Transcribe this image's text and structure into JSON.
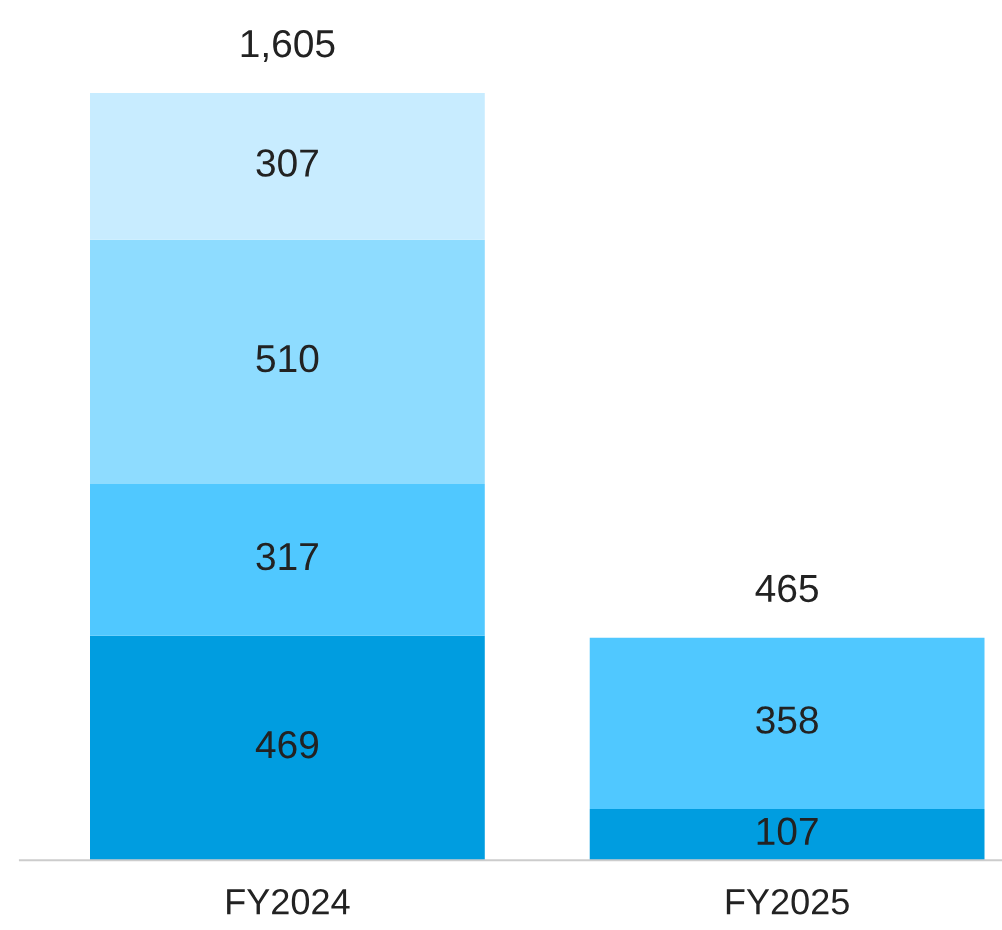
{
  "chart_data": {
    "type": "bar",
    "stacked": true,
    "data_labels": true,
    "categories": [
      "FY2024",
      "FY2025"
    ],
    "series": [
      {
        "color": "#009de0",
        "values": [
          469,
          107
        ]
      },
      {
        "color": "#50c8ff",
        "values": [
          317,
          358
        ]
      },
      {
        "color": "#8edcff",
        "values": [
          510,
          null
        ]
      },
      {
        "color": "#c8ecff",
        "values": [
          307,
          null
        ]
      }
    ],
    "totals": [
      "1,605",
      "465"
    ],
    "grid": false,
    "legend": false
  }
}
